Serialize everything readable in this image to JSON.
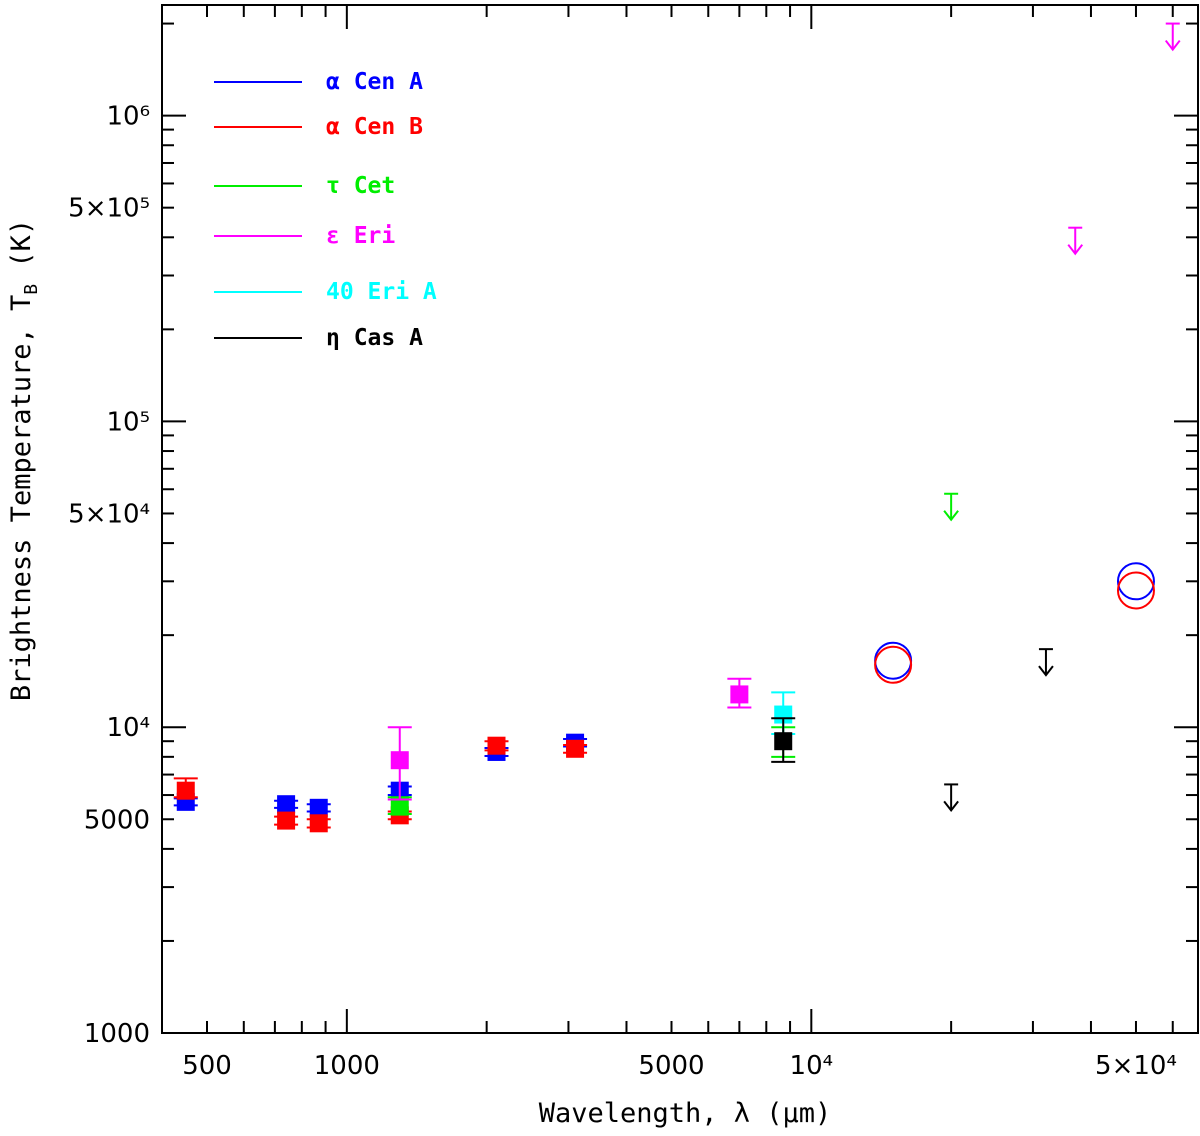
{
  "chart_data": {
    "type": "scatter",
    "title": "",
    "xlabel": "Wavelength, λ (μm)",
    "ylabel": "Brightness Temperature, T_B (K)",
    "xscale": "log",
    "yscale": "log",
    "xlim": [
      400,
      68000
    ],
    "ylim": [
      1000,
      2300000
    ],
    "x_ticks": [
      {
        "value": 500,
        "label": "500"
      },
      {
        "value": 1000,
        "label": "1000"
      },
      {
        "value": 5000,
        "label": "5000"
      },
      {
        "value": 10000,
        "label": "10⁴"
      },
      {
        "value": 50000,
        "label": "5×10⁴"
      }
    ],
    "y_ticks": [
      {
        "value": 1000,
        "label": "1000"
      },
      {
        "value": 5000,
        "label": "5000"
      },
      {
        "value": 10000,
        "label": "10⁴"
      },
      {
        "value": 50000,
        "label": "5×10⁴"
      },
      {
        "value": 100000,
        "label": "10⁵"
      },
      {
        "value": 500000,
        "label": "5×10⁵"
      },
      {
        "value": 1000000,
        "label": "10⁶"
      }
    ],
    "legend_position": "top-left",
    "series": [
      {
        "name": "α Cen A",
        "color": "#0000ff",
        "points": [
          {
            "x": 450,
            "y": 5700,
            "err_lo": 150,
            "err_hi": 150,
            "marker": "square"
          },
          {
            "x": 740,
            "y": 5600,
            "err_lo": 150,
            "err_hi": 150,
            "marker": "square"
          },
          {
            "x": 870,
            "y": 5450,
            "err_lo": 150,
            "err_hi": 150,
            "marker": "square"
          },
          {
            "x": 1300,
            "y": 6200,
            "err_lo": 200,
            "err_hi": 200,
            "marker": "square"
          },
          {
            "x": 2100,
            "y": 8300,
            "err_lo": 250,
            "err_hi": 250,
            "marker": "square"
          },
          {
            "x": 3100,
            "y": 8900,
            "err_lo": 250,
            "err_hi": 250,
            "marker": "square"
          },
          {
            "x": 15000,
            "y": 16500,
            "marker": "circle"
          },
          {
            "x": 50000,
            "y": 30000,
            "marker": "circle"
          }
        ]
      },
      {
        "name": "α Cen B",
        "color": "#ff0000",
        "points": [
          {
            "x": 450,
            "y": 6200,
            "err_lo": 300,
            "err_hi": 600,
            "marker": "square"
          },
          {
            "x": 740,
            "y": 4950,
            "err_lo": 150,
            "err_hi": 150,
            "marker": "square"
          },
          {
            "x": 870,
            "y": 4850,
            "err_lo": 150,
            "err_hi": 150,
            "marker": "square"
          },
          {
            "x": 1300,
            "y": 5150,
            "err_lo": 150,
            "err_hi": 150,
            "marker": "square"
          },
          {
            "x": 2100,
            "y": 8700,
            "err_lo": 300,
            "err_hi": 300,
            "marker": "square"
          },
          {
            "x": 3100,
            "y": 8500,
            "err_lo": 250,
            "err_hi": 250,
            "marker": "square"
          },
          {
            "x": 15000,
            "y": 16000,
            "marker": "circle"
          },
          {
            "x": 50000,
            "y": 28000,
            "marker": "circle"
          }
        ]
      },
      {
        "name": "τ Cet",
        "color": "#00ee00",
        "points": [
          {
            "x": 1300,
            "y": 5500,
            "err_lo": 300,
            "err_hi": 400,
            "marker": "square"
          },
          {
            "x": 8700,
            "y": 9000,
            "err_lo": 1000,
            "err_hi": 1000,
            "marker": "none"
          },
          {
            "x": 20000,
            "y": 58000,
            "marker": "upper-limit"
          }
        ]
      },
      {
        "name": "ε Eri",
        "color": "#ff00ff",
        "points": [
          {
            "x": 1300,
            "y": 7800,
            "err_lo": 2000,
            "err_hi": 2200,
            "marker": "square"
          },
          {
            "x": 7000,
            "y": 12800,
            "err_lo": 1200,
            "err_hi": 1600,
            "marker": "square"
          },
          {
            "x": 37000,
            "y": 430000,
            "marker": "upper-limit"
          },
          {
            "x": 60000,
            "y": 2000000,
            "marker": "upper-limit"
          }
        ]
      },
      {
        "name": "40 Eri A",
        "color": "#00ffff",
        "points": [
          {
            "x": 8700,
            "y": 11000,
            "err_lo": 1500,
            "err_hi": 2000,
            "marker": "square"
          }
        ]
      },
      {
        "name": "η Cas A",
        "color": "#000000",
        "points": [
          {
            "x": 8700,
            "y": 9000,
            "err_lo": 1300,
            "err_hi": 1700,
            "marker": "square"
          },
          {
            "x": 20000,
            "y": 6500,
            "marker": "upper-limit"
          },
          {
            "x": 32000,
            "y": 18000,
            "marker": "upper-limit"
          }
        ]
      }
    ]
  }
}
